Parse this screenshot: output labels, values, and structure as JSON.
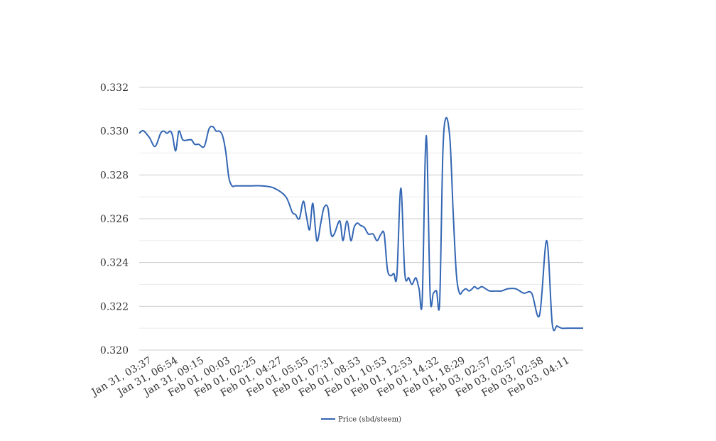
{
  "chart_data": {
    "type": "line",
    "title": "",
    "xlabel": "",
    "ylabel": "",
    "ylim": [
      0.32,
      0.332
    ],
    "y_ticks": [
      "0.320",
      "0.322",
      "0.324",
      "0.326",
      "0.328",
      "0.330",
      "0.332"
    ],
    "x_tick_labels": [
      "Jan 31, 03:37",
      "Jan 31, 06:54",
      "Jan 31, 09:15",
      "Feb 01, 00:03",
      "Feb 01, 02:25",
      "Feb 01, 04:27",
      "Feb 01, 05:55",
      "Feb 01, 07:31",
      "Feb 01, 08:53",
      "Feb 01, 10:53",
      "Feb 01, 12:53",
      "Feb 01, 14:32",
      "Feb 01, 18:29",
      "Feb 03, 02:57",
      "Feb 03, 02:57",
      "Feb 03, 02:58",
      "Feb 03, 04:11"
    ],
    "grid": true,
    "legend_position": "bottom-center",
    "colors": {
      "series": "#3366b3",
      "grid_major": "#cccccc",
      "grid_minor": "#ebebeb",
      "text": "#333333"
    },
    "series": [
      {
        "name": "Price (sbd/steem)",
        "x": [
          0,
          0.3,
          0.6,
          1.3,
          2.0,
          2.7,
          3.1,
          3.5,
          3.9,
          4.2,
          4.6,
          5.0,
          5.5,
          6.2,
          6.6,
          7.0,
          7.5,
          8.2,
          8.8,
          9.3,
          9.7,
          10.1,
          10.5,
          10.9,
          11.3,
          11.7,
          12.1,
          12.5,
          13.0,
          13.4,
          14.0,
          15.5,
          17.0,
          18.5,
          19.3,
          19.7,
          20.2,
          20.7,
          21.1,
          21.5,
          21.9,
          22.4,
          22.9,
          23.3,
          23.8,
          24.2,
          24.6,
          25.3,
          25.7,
          26.2,
          26.7,
          27.1,
          27.5,
          27.9,
          28.4,
          28.9,
          29.5,
          30.0,
          30.5,
          30.9,
          31.3,
          31.7,
          32.1,
          32.5,
          33.0,
          33.5,
          34.0,
          34.4,
          34.9,
          35.3,
          35.7,
          36.2,
          36.7,
          37.1,
          37.5,
          37.9,
          38.3,
          38.7,
          39.2,
          39.6,
          40.0,
          40.4,
          40.8,
          41.2,
          41.6,
          42.0,
          42.3,
          42.7,
          43.2,
          43.7,
          44.2,
          45.0,
          45.7,
          46.5,
          47.5,
          48.5,
          49.5,
          50.5,
          51.4,
          52.1,
          52.7,
          53.3,
          53.9,
          54.4,
          55.0,
          55.6,
          56.0
        ],
        "values": [
          0.3299,
          0.33,
          0.33,
          0.3297,
          0.3293,
          0.3299,
          0.33,
          0.3299,
          0.33,
          0.3298,
          0.3291,
          0.33,
          0.3296,
          0.3296,
          0.3296,
          0.3294,
          0.3294,
          0.3293,
          0.3301,
          0.3302,
          0.33,
          0.33,
          0.3298,
          0.3291,
          0.3279,
          0.3275,
          0.3275,
          0.3275,
          0.3275,
          0.3275,
          0.3275,
          0.3275,
          0.3274,
          0.327,
          0.3263,
          0.3262,
          0.326,
          0.3268,
          0.3261,
          0.3255,
          0.3267,
          0.325,
          0.3258,
          0.3265,
          0.3265,
          0.3253,
          0.3253,
          0.3259,
          0.325,
          0.3259,
          0.325,
          0.3256,
          0.3258,
          0.3257,
          0.3256,
          0.3253,
          0.3253,
          0.325,
          0.3253,
          0.3253,
          0.3237,
          0.3234,
          0.3235,
          0.3234,
          0.3274,
          0.3235,
          0.3233,
          0.323,
          0.3233,
          0.3228,
          0.3223,
          0.3298,
          0.3225,
          0.3226,
          0.3227,
          0.3222,
          0.329,
          0.3306,
          0.3296,
          0.3263,
          0.3235,
          0.3226,
          0.3227,
          0.3228,
          0.3227,
          0.3228,
          0.3229,
          0.3228,
          0.3229,
          0.3228,
          0.3227,
          0.3227,
          0.3227,
          0.3228,
          0.3228,
          0.3226,
          0.3226,
          0.3216,
          0.325,
          0.3212,
          0.3211,
          0.321,
          0.321,
          0.321,
          0.321,
          0.321,
          0.321
        ]
      }
    ]
  }
}
